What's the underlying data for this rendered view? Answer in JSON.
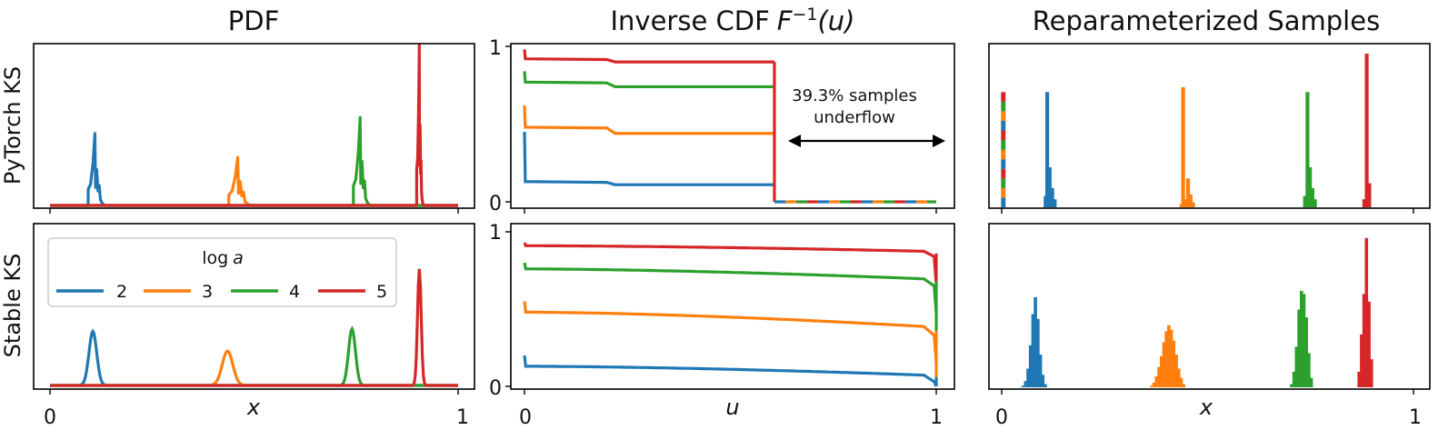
{
  "colors": {
    "2": "#1f77b4",
    "3": "#ff7f0e",
    "4": "#2ca02c",
    "5": "#d62728"
  },
  "columns": [
    "PDF",
    "Inverse CDF",
    "Reparameterized Samples"
  ],
  "title_suffix": {
    "inverse_cdf_math": "F",
    "inverse_cdf_sup": "−1",
    "inverse_cdf_arg": "(u)"
  },
  "rows": [
    "PyTorch KS",
    "Stable KS"
  ],
  "annotation": {
    "line1": "39.3% samples",
    "line2": "underflow"
  },
  "legend": {
    "title_prefix": "log",
    "title_var": "a",
    "entries": [
      "2",
      "3",
      "4",
      "5"
    ]
  },
  "chart_data": [
    {
      "type": "line",
      "panel": "pdf-pytorch",
      "xlabel": "",
      "ylabel": "PyTorch KS",
      "xlim": [
        0,
        1
      ],
      "xticks": [],
      "yticks": [],
      "series": [
        {
          "name": "2",
          "peak_x": 0.11,
          "peak_height": 0.45,
          "shape": "jagged"
        },
        {
          "name": "3",
          "peak_x": 0.46,
          "peak_height": 0.3,
          "shape": "jagged"
        },
        {
          "name": "4",
          "peak_x": 0.76,
          "peak_height": 0.55,
          "shape": "jagged"
        },
        {
          "name": "5",
          "peak_x": 0.905,
          "peak_height": 1.0,
          "shape": "jagged"
        }
      ]
    },
    {
      "type": "line",
      "panel": "pdf-stable",
      "xlabel": "x",
      "ylabel": "Stable KS",
      "xlim": [
        0,
        1
      ],
      "xticks": [
        "0",
        "1"
      ],
      "yticks": [],
      "series": [
        {
          "name": "2",
          "peak_x": 0.105,
          "peak_height": 0.44
        },
        {
          "name": "3",
          "peak_x": 0.435,
          "peak_height": 0.28
        },
        {
          "name": "4",
          "peak_x": 0.74,
          "peak_height": 0.46
        },
        {
          "name": "5",
          "peak_x": 0.905,
          "peak_height": 0.95
        }
      ]
    },
    {
      "type": "line",
      "panel": "icdf-pytorch",
      "xlabel": "",
      "ylabel": "",
      "xlim": [
        0,
        1
      ],
      "ylim": [
        0,
        1
      ],
      "yticks": [
        "0",
        "1"
      ],
      "underflow_u": 0.607,
      "series": [
        {
          "name": "2",
          "start": 0.45,
          "after_start": 0.13,
          "level": 0.11
        },
        {
          "name": "3",
          "start": 0.62,
          "after_start": 0.48,
          "level": 0.44
        },
        {
          "name": "4",
          "start": 0.84,
          "after_start": 0.77,
          "level": 0.74
        },
        {
          "name": "5",
          "start": 0.98,
          "after_start": 0.92,
          "level": 0.9
        }
      ]
    },
    {
      "type": "line",
      "panel": "icdf-stable",
      "xlabel": "u",
      "ylabel": "",
      "xlim": [
        0,
        1
      ],
      "ylim": [
        0,
        1
      ],
      "xticks": [
        "0",
        "1"
      ],
      "yticks": [
        "0",
        "1"
      ],
      "series": [
        {
          "name": "2",
          "start": 0.2,
          "after_start": 0.13,
          "end": 0.05
        },
        {
          "name": "3",
          "start": 0.55,
          "after_start": 0.48,
          "end": 0.35
        },
        {
          "name": "4",
          "start": 0.8,
          "after_start": 0.76,
          "end": 0.67
        },
        {
          "name": "5",
          "start": 0.93,
          "after_start": 0.91,
          "end": 0.86
        }
      ]
    },
    {
      "type": "bar",
      "panel": "samples-pytorch",
      "xlabel": "",
      "ylabel": "",
      "xlim": [
        0,
        1
      ],
      "xticks": [],
      "yticks": [],
      "series": [
        {
          "name": "2",
          "bins": [
            [
              0.102,
              0.07
            ],
            [
              0.106,
              0.72
            ],
            [
              0.112,
              0.25
            ],
            [
              0.118,
              0.12
            ],
            [
              0.124,
              0.05
            ]
          ]
        },
        {
          "name": "3",
          "bins": [
            [
              0.432,
              0.02
            ],
            [
              0.436,
              0.75
            ],
            [
              0.442,
              0.05
            ],
            [
              0.448,
              0.18
            ],
            [
              0.454,
              0.08
            ],
            [
              0.46,
              0.03
            ]
          ]
        },
        {
          "name": "4",
          "bins": [
            [
              0.732,
              0.07
            ],
            [
              0.738,
              0.72
            ],
            [
              0.744,
              0.25
            ],
            [
              0.75,
              0.12
            ],
            [
              0.756,
              0.05
            ]
          ]
        },
        {
          "name": "5",
          "bins": [
            [
              0.876,
              0.05
            ],
            [
              0.882,
              0.96
            ],
            [
              0.888,
              0.15
            ]
          ]
        },
        {
          "name": "underflow",
          "stacked_at_x": 0.005,
          "height": 0.72
        }
      ]
    },
    {
      "type": "bar",
      "panel": "samples-stable",
      "xlabel": "x",
      "ylabel": "",
      "xlim": [
        0,
        1
      ],
      "xticks": [
        "0",
        "1"
      ],
      "yticks": [],
      "series": [
        {
          "name": "2",
          "bins": [
            [
              0.048,
              0.01
            ],
            [
              0.054,
              0.04
            ],
            [
              0.06,
              0.12
            ],
            [
              0.066,
              0.27
            ],
            [
              0.072,
              0.47
            ],
            [
              0.078,
              0.58
            ],
            [
              0.084,
              0.44
            ],
            [
              0.09,
              0.21
            ],
            [
              0.096,
              0.08
            ],
            [
              0.102,
              0.02
            ]
          ]
        },
        {
          "name": "3",
          "bins": [
            [
              0.36,
              0.01
            ],
            [
              0.366,
              0.03
            ],
            [
              0.372,
              0.07
            ],
            [
              0.378,
              0.13
            ],
            [
              0.384,
              0.2
            ],
            [
              0.39,
              0.29
            ],
            [
              0.396,
              0.36
            ],
            [
              0.402,
              0.4
            ],
            [
              0.408,
              0.37
            ],
            [
              0.414,
              0.3
            ],
            [
              0.42,
              0.21
            ],
            [
              0.426,
              0.12
            ],
            [
              0.432,
              0.06
            ],
            [
              0.438,
              0.02
            ]
          ]
        },
        {
          "name": "4",
          "bins": [
            [
              0.7,
              0.02
            ],
            [
              0.706,
              0.1
            ],
            [
              0.712,
              0.26
            ],
            [
              0.718,
              0.5
            ],
            [
              0.724,
              0.62
            ],
            [
              0.73,
              0.6
            ],
            [
              0.736,
              0.45
            ],
            [
              0.742,
              0.22
            ],
            [
              0.748,
              0.06
            ]
          ]
        },
        {
          "name": "5",
          "bins": [
            [
              0.864,
              0.1
            ],
            [
              0.87,
              0.34
            ],
            [
              0.876,
              0.6
            ],
            [
              0.882,
              0.96
            ],
            [
              0.888,
              0.55
            ],
            [
              0.894,
              0.18
            ]
          ]
        }
      ]
    }
  ]
}
